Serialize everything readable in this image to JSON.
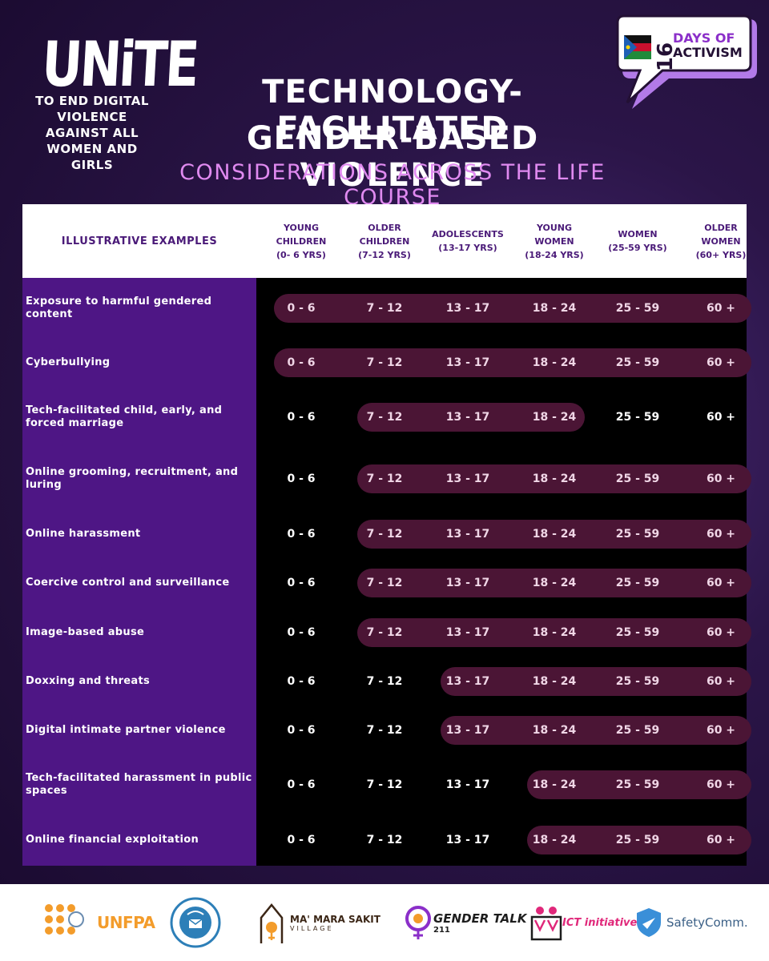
{
  "brand": {
    "unite_word": "UNiTE",
    "unite_tagline": "TO END DIGITAL VIOLENCE AGAINST ALL WOMEN AND GIRLS",
    "badge_number": "16",
    "badge_line1": "DAYS OF",
    "badge_line2": "ACTIVISM"
  },
  "header": {
    "title_line1": "TECHNOLOGY-FACILITATED",
    "title_line2": "GENDER-BASED VIOLENCE",
    "subtitle": "CONSIDERATIONS ACROSS THE LIFE COURSE"
  },
  "table": {
    "examples_header": "ILLUSTRATIVE EXAMPLES",
    "age_headers": [
      "YOUNG\nCHILDREN\n(0- 6 YRS)",
      "OLDER\nCHILDREN\n(7-12 YRS)",
      "ADOLESCENTS\n(13-17 YRS)",
      "YOUNG\nWOMEN\n(18-24 YRS)",
      "WOMEN\n(25-59 YRS)",
      "OLDER\nWOMEN\n(60+ YRS)"
    ],
    "age_values": [
      "0 - 6",
      "7 - 12",
      "13 - 17",
      "18 - 24",
      "25 - 59",
      "60 +"
    ],
    "rows": [
      {
        "label": "Exposure to harmful gendered content",
        "highlight": [
          0,
          5
        ]
      },
      {
        "label": "Cyberbullying",
        "highlight": [
          0,
          5
        ]
      },
      {
        "label": "Tech-facilitated child, early, and forced marriage",
        "highlight": [
          1,
          3
        ]
      },
      {
        "label": "Online grooming, recruitment, and luring",
        "highlight": [
          1,
          5
        ]
      },
      {
        "label": "Online harassment",
        "highlight": [
          1,
          5
        ]
      },
      {
        "label": "Coercive control and surveillance",
        "highlight": [
          1,
          5
        ]
      },
      {
        "label": "Image-based abuse",
        "highlight": [
          1,
          5
        ]
      },
      {
        "label": "Doxxing and threats",
        "highlight": [
          2,
          5
        ]
      },
      {
        "label": "Digital intimate partner violence",
        "highlight": [
          2,
          5
        ]
      },
      {
        "label": "Tech-facilitated harassment in public spaces",
        "highlight": [
          3,
          5
        ]
      },
      {
        "label": "Online financial exploitation",
        "highlight": [
          3,
          5
        ]
      }
    ]
  },
  "partners": {
    "unfpa": "UNFPA",
    "mama_line1": "MA' MARA SAKIT",
    "mama_line2": "VILLAGE",
    "gender_talk": "GENDER TALK",
    "gender_talk_num": "211",
    "ict": "ICT initiative",
    "safetycomm": "SafetyComm."
  },
  "colors": {
    "accent_purple": "#4e1685",
    "pill": "#4b1535",
    "subtitle_pink": "#e08af0"
  }
}
